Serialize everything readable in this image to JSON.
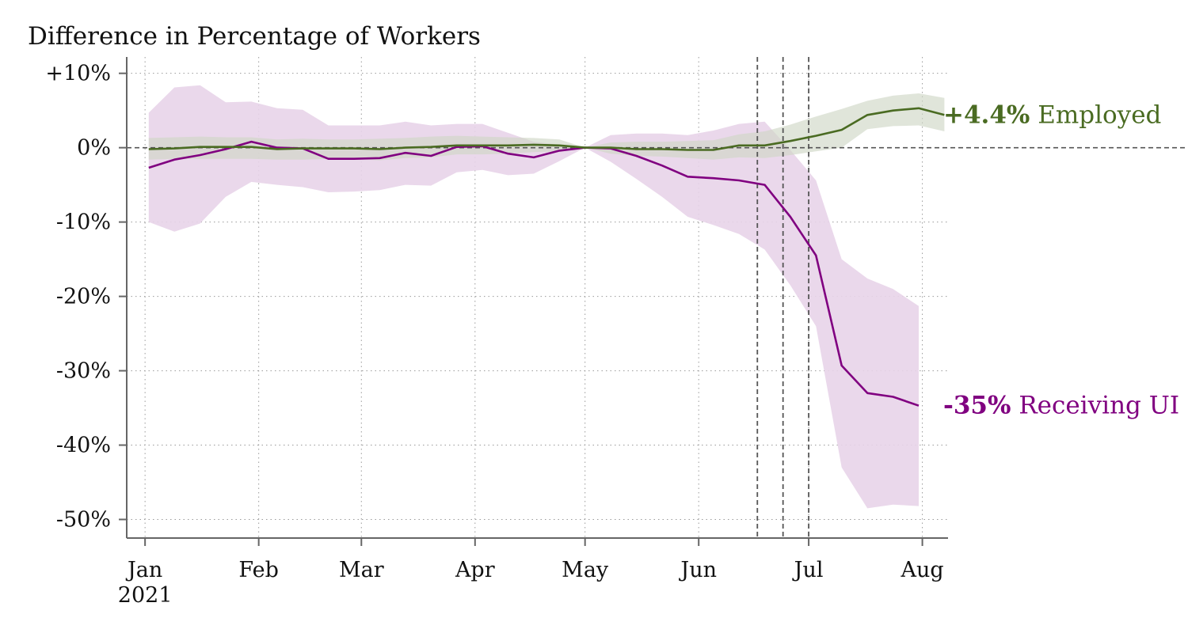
{
  "chart_data": {
    "type": "line",
    "title": "Difference in Percentage of Workers",
    "xlabel": "",
    "ylabel": "",
    "x_ticks": [
      {
        "date": "2021-01-01",
        "label": "Jan",
        "sublabel": "2021"
      },
      {
        "date": "2021-02-01",
        "label": "Feb"
      },
      {
        "date": "2021-03-01",
        "label": "Mar"
      },
      {
        "date": "2021-04-01",
        "label": "Apr"
      },
      {
        "date": "2021-05-01",
        "label": "May"
      },
      {
        "date": "2021-06-01",
        "label": "Jun"
      },
      {
        "date": "2021-07-01",
        "label": "Jul"
      },
      {
        "date": "2021-08-01",
        "label": "Aug"
      }
    ],
    "y_ticks": [
      {
        "value": 10,
        "label": "+10%"
      },
      {
        "value": 0,
        "label": "0%"
      },
      {
        "value": -10,
        "label": "-10%"
      },
      {
        "value": -20,
        "label": "-20%"
      },
      {
        "value": -30,
        "label": "-30%"
      },
      {
        "value": -40,
        "label": "-40%"
      },
      {
        "value": -50,
        "label": "-50%"
      }
    ],
    "xlim": [
      "2020-12-27",
      "2021-08-08"
    ],
    "ylim": [
      -52.5,
      12.2
    ],
    "grid": true,
    "zero_line": true,
    "vertical_lines": [
      "2021-06-17",
      "2021-06-24",
      "2021-07-01"
    ],
    "series": [
      {
        "name": "Receiving UI",
        "end_value_label": "-35%",
        "color": "#800080",
        "band_color": "#e8d4e9",
        "x": [
          "2021-01-02",
          "2021-01-09",
          "2021-01-16",
          "2021-01-23",
          "2021-01-30",
          "2021-02-06",
          "2021-02-13",
          "2021-02-20",
          "2021-02-27",
          "2021-03-06",
          "2021-03-13",
          "2021-03-20",
          "2021-03-27",
          "2021-04-03",
          "2021-04-10",
          "2021-04-17",
          "2021-04-24",
          "2021-05-01",
          "2021-05-08",
          "2021-05-15",
          "2021-05-22",
          "2021-05-29",
          "2021-06-05",
          "2021-06-12",
          "2021-06-19",
          "2021-06-26",
          "2021-07-03",
          "2021-07-10",
          "2021-07-17",
          "2021-07-24",
          "2021-07-31"
        ],
        "values": [
          -2.7,
          -1.6,
          -1.0,
          -0.2,
          0.8,
          0.0,
          -0.1,
          -1.5,
          -1.5,
          -1.4,
          -0.7,
          -1.1,
          0.1,
          0.2,
          -0.8,
          -1.3,
          -0.4,
          0.0,
          -0.1,
          -1.1,
          -2.4,
          -3.9,
          -4.1,
          -4.4,
          -5.0,
          -9.3,
          -14.5,
          -29.3,
          -33.0,
          -33.5,
          -34.7
        ],
        "lower": [
          -10.0,
          -11.3,
          -10.2,
          -6.6,
          -4.6,
          -5.0,
          -5.3,
          -6.0,
          -5.9,
          -5.7,
          -5.0,
          -5.1,
          -3.3,
          -3.0,
          -3.7,
          -3.5,
          -1.8,
          0.0,
          -1.9,
          -4.2,
          -6.6,
          -9.3,
          -10.4,
          -11.6,
          -13.7,
          -18.5,
          -24.0,
          -43.0,
          -48.5,
          -48.0,
          -48.2
        ],
        "upper": [
          4.7,
          8.1,
          8.4,
          6.1,
          6.2,
          5.3,
          5.1,
          3.0,
          3.0,
          3.0,
          3.5,
          3.0,
          3.2,
          3.2,
          2.0,
          0.8,
          0.4,
          0.0,
          1.7,
          1.9,
          1.9,
          1.7,
          2.3,
          3.2,
          3.5,
          -0.3,
          -4.4,
          -15.0,
          -17.6,
          -19.0,
          -21.3
        ]
      },
      {
        "name": "Employed",
        "end_value_label": "+4.4%",
        "color": "#4a6b22",
        "band_color": "#cfd7c6",
        "x": [
          "2021-01-02",
          "2021-01-09",
          "2021-01-16",
          "2021-01-23",
          "2021-01-30",
          "2021-02-06",
          "2021-02-13",
          "2021-02-20",
          "2021-02-27",
          "2021-03-06",
          "2021-03-13",
          "2021-03-20",
          "2021-03-27",
          "2021-04-03",
          "2021-04-10",
          "2021-04-17",
          "2021-04-24",
          "2021-05-01",
          "2021-05-08",
          "2021-05-15",
          "2021-05-22",
          "2021-05-29",
          "2021-06-05",
          "2021-06-12",
          "2021-06-19",
          "2021-06-26",
          "2021-07-03",
          "2021-07-10",
          "2021-07-17",
          "2021-07-24",
          "2021-07-31",
          "2021-08-07"
        ],
        "values": [
          -0.2,
          -0.1,
          0.1,
          0.1,
          0.1,
          -0.2,
          -0.1,
          -0.1,
          -0.1,
          -0.2,
          0.0,
          0.1,
          0.3,
          0.3,
          0.3,
          0.4,
          0.3,
          0.0,
          0.0,
          -0.2,
          -0.2,
          -0.3,
          -0.3,
          0.3,
          0.3,
          0.9,
          1.6,
          2.4,
          4.4,
          5.0,
          5.3,
          4.4
        ],
        "lower": [
          -1.6,
          -1.5,
          -1.5,
          -1.5,
          -1.5,
          -1.6,
          -1.6,
          -1.5,
          -1.5,
          -1.7,
          -1.4,
          -1.3,
          -0.9,
          -0.9,
          -0.8,
          -0.6,
          -0.5,
          0.0,
          -0.8,
          -1.1,
          -1.2,
          -1.4,
          -1.6,
          -1.3,
          -1.4,
          -1.0,
          -0.5,
          0.0,
          2.5,
          2.9,
          3.0,
          2.2
        ],
        "upper": [
          1.3,
          1.4,
          1.5,
          1.4,
          1.4,
          1.1,
          1.2,
          1.1,
          1.1,
          1.2,
          1.3,
          1.5,
          1.6,
          1.5,
          1.4,
          1.3,
          1.1,
          0.0,
          0.7,
          0.8,
          0.8,
          0.9,
          1.0,
          1.8,
          2.2,
          3.1,
          4.2,
          5.2,
          6.3,
          7.0,
          7.3,
          6.7
        ]
      }
    ]
  },
  "colors": {
    "axis": "#666666",
    "grid": "#9a9a9a",
    "zero_line": "#555555",
    "vertical_line": "#555555",
    "text": "#111111"
  }
}
